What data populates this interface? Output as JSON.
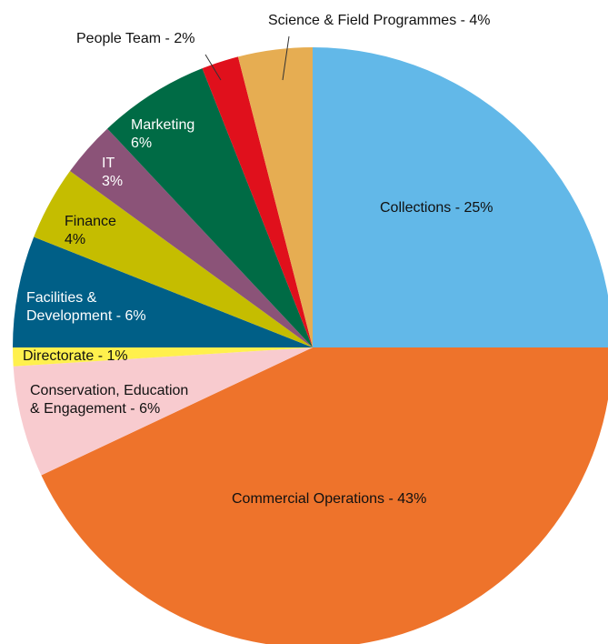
{
  "chart_data": {
    "type": "pie",
    "title": "",
    "slices": [
      {
        "label": [
          "Collections - 25%"
        ],
        "value": 25,
        "color": "#62b8e8",
        "text_color": "#111111"
      },
      {
        "label": [
          "Commercial Operations - 43%"
        ],
        "value": 43,
        "color": "#ee732b",
        "text_color": "#111111"
      },
      {
        "label": [
          "Conservation, Education",
          "& Engagement - 6%"
        ],
        "value": 6,
        "color": "#f8cbcf",
        "text_color": "#111111"
      },
      {
        "label": [
          "Directorate - 1%"
        ],
        "value": 1,
        "color": "#fff04d",
        "text_color": "#111111"
      },
      {
        "label": [
          "Facilities &",
          "Development - 6%"
        ],
        "value": 6,
        "color": "#005f87",
        "text_color": "#ffffff"
      },
      {
        "label": [
          "Finance",
          "4%"
        ],
        "value": 4,
        "color": "#c5bd00",
        "text_color": "#111111"
      },
      {
        "label": [
          "IT",
          "3%"
        ],
        "value": 3,
        "color": "#8b5378",
        "text_color": "#ffffff"
      },
      {
        "label": [
          "Marketing",
          "6%"
        ],
        "value": 6,
        "color": "#006b45",
        "text_color": "#ffffff"
      },
      {
        "label": [
          "People Team - 2%"
        ],
        "value": 2,
        "color": "#e0101c",
        "text_color": "#111111"
      },
      {
        "label": [
          "Science & Field Programmes - 4%"
        ],
        "value": 4,
        "color": "#e6ad52",
        "text_color": "#111111"
      }
    ]
  }
}
